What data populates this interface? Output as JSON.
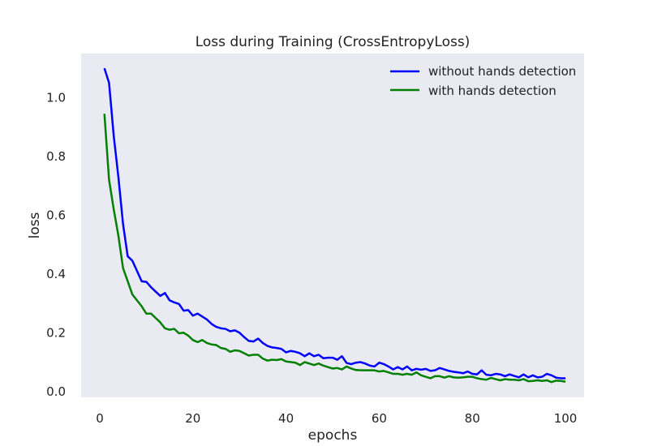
{
  "chart_data": {
    "type": "line",
    "title": "Loss during Training (CrossEntropyLoss)",
    "xlabel": "epochs",
    "ylabel": "loss",
    "xlim": [
      -4,
      104
    ],
    "ylim": [
      -0.02,
      1.15
    ],
    "x_ticks": [
      0,
      20,
      40,
      60,
      80,
      100
    ],
    "y_ticks": [
      0.0,
      0.2,
      0.4,
      0.6,
      0.8,
      1.0
    ],
    "x_tick_labels": [
      "0",
      "20",
      "40",
      "60",
      "80",
      "100"
    ],
    "y_tick_labels": [
      "0.0",
      "0.2",
      "0.4",
      "0.6",
      "0.8",
      "1.0"
    ],
    "grid": false,
    "legend_position": "top-right",
    "background": "#EAEAF2",
    "x": [
      1,
      2,
      3,
      4,
      5,
      6,
      7,
      8,
      9,
      10,
      11,
      12,
      13,
      14,
      15,
      16,
      17,
      18,
      19,
      20,
      21,
      22,
      23,
      24,
      25,
      26,
      27,
      28,
      29,
      30,
      31,
      32,
      33,
      34,
      35,
      36,
      37,
      38,
      39,
      40,
      41,
      42,
      43,
      44,
      45,
      46,
      47,
      48,
      49,
      50,
      51,
      52,
      53,
      54,
      55,
      56,
      57,
      58,
      59,
      60,
      61,
      62,
      63,
      64,
      65,
      66,
      67,
      68,
      69,
      70,
      71,
      72,
      73,
      74,
      75,
      76,
      77,
      78,
      79,
      80,
      81,
      82,
      83,
      84,
      85,
      86,
      87,
      88,
      89,
      90,
      91,
      92,
      93,
      94,
      95,
      96,
      97,
      98,
      99,
      100
    ],
    "series": [
      {
        "name": "without hands detection",
        "color": "#0000FF",
        "values": [
          1.1,
          1.05,
          0.87,
          0.73,
          0.57,
          0.46,
          0.445,
          0.41,
          0.375,
          0.373,
          0.355,
          0.34,
          0.325,
          0.335,
          0.31,
          0.303,
          0.298,
          0.275,
          0.277,
          0.258,
          0.265,
          0.255,
          0.245,
          0.23,
          0.22,
          0.215,
          0.213,
          0.205,
          0.208,
          0.2,
          0.185,
          0.172,
          0.17,
          0.18,
          0.165,
          0.155,
          0.15,
          0.148,
          0.145,
          0.133,
          0.138,
          0.135,
          0.13,
          0.12,
          0.13,
          0.12,
          0.125,
          0.113,
          0.115,
          0.115,
          0.108,
          0.12,
          0.097,
          0.093,
          0.098,
          0.1,
          0.095,
          0.088,
          0.085,
          0.098,
          0.093,
          0.085,
          0.075,
          0.083,
          0.075,
          0.085,
          0.072,
          0.077,
          0.074,
          0.077,
          0.07,
          0.072,
          0.08,
          0.075,
          0.07,
          0.067,
          0.065,
          0.062,
          0.068,
          0.06,
          0.058,
          0.072,
          0.057,
          0.055,
          0.06,
          0.058,
          0.052,
          0.058,
          0.053,
          0.048,
          0.058,
          0.048,
          0.055,
          0.048,
          0.05,
          0.06,
          0.055,
          0.047,
          0.045,
          0.045
        ]
      },
      {
        "name": "with hands detection",
        "color": "#008000",
        "values": [
          0.945,
          0.72,
          0.62,
          0.53,
          0.42,
          0.375,
          0.33,
          0.31,
          0.29,
          0.265,
          0.265,
          0.25,
          0.235,
          0.215,
          0.21,
          0.213,
          0.198,
          0.2,
          0.19,
          0.175,
          0.168,
          0.175,
          0.165,
          0.16,
          0.158,
          0.148,
          0.145,
          0.135,
          0.14,
          0.138,
          0.13,
          0.122,
          0.125,
          0.125,
          0.112,
          0.105,
          0.108,
          0.107,
          0.11,
          0.102,
          0.1,
          0.098,
          0.09,
          0.1,
          0.095,
          0.09,
          0.095,
          0.088,
          0.083,
          0.078,
          0.08,
          0.075,
          0.085,
          0.078,
          0.073,
          0.072,
          0.072,
          0.072,
          0.072,
          0.068,
          0.07,
          0.065,
          0.06,
          0.06,
          0.057,
          0.06,
          0.057,
          0.065,
          0.055,
          0.05,
          0.045,
          0.052,
          0.052,
          0.047,
          0.052,
          0.048,
          0.047,
          0.048,
          0.05,
          0.05,
          0.045,
          0.042,
          0.04,
          0.046,
          0.042,
          0.038,
          0.042,
          0.04,
          0.04,
          0.038,
          0.042,
          0.035,
          0.036,
          0.038,
          0.036,
          0.038,
          0.032,
          0.037,
          0.036,
          0.033
        ]
      }
    ]
  }
}
